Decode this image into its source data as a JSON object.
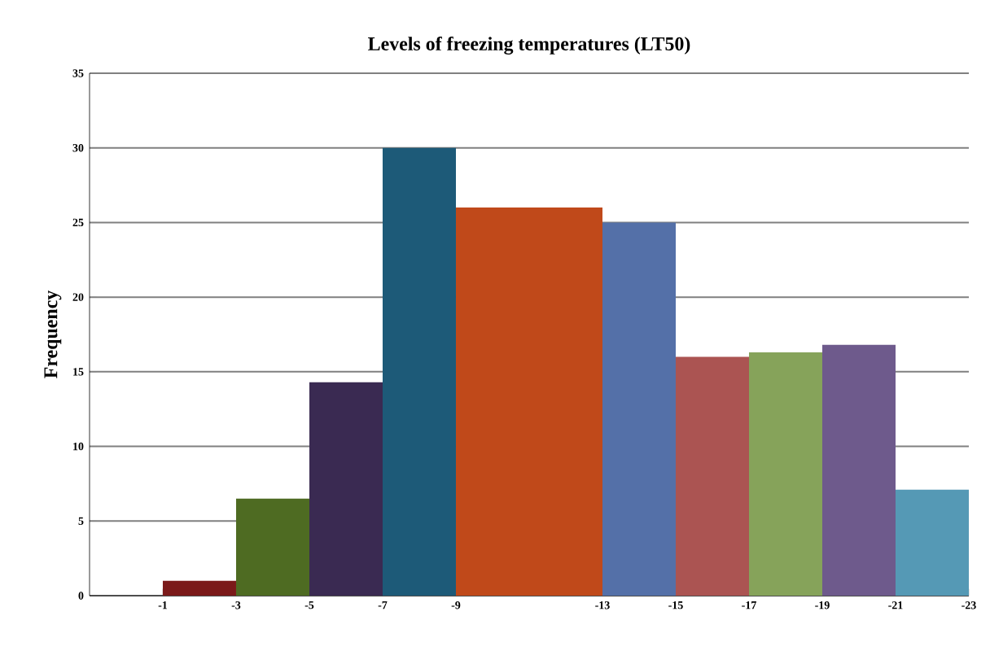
{
  "chart_data": {
    "type": "histogram",
    "title": "Levels of freezing temperatures (LT50)",
    "ylabel": "Frequency",
    "bins": [
      -1,
      -3,
      -5,
      -7,
      -9,
      -13,
      -15,
      -17,
      -19,
      -21,
      -23
    ],
    "values": [
      1,
      6.5,
      14.3,
      30,
      26,
      25,
      16,
      16.3,
      16.8,
      7.1
    ],
    "colors": [
      "#7b1a1a",
      "#4e6b22",
      "#3a2a52",
      "#1d5a78",
      "#c0491a",
      "#5470a8",
      "#ab5452",
      "#86a35a",
      "#6e5a8c",
      "#5599b5"
    ],
    "xlim": [
      1,
      -23
    ],
    "xticks": [
      -1,
      -3,
      -5,
      -7,
      -9,
      -13,
      -15,
      -17,
      -19,
      -21,
      -23
    ],
    "ylim": [
      0,
      35
    ],
    "yticks": [
      0,
      5,
      10,
      15,
      20,
      25,
      30,
      35
    ],
    "grid": "y"
  }
}
